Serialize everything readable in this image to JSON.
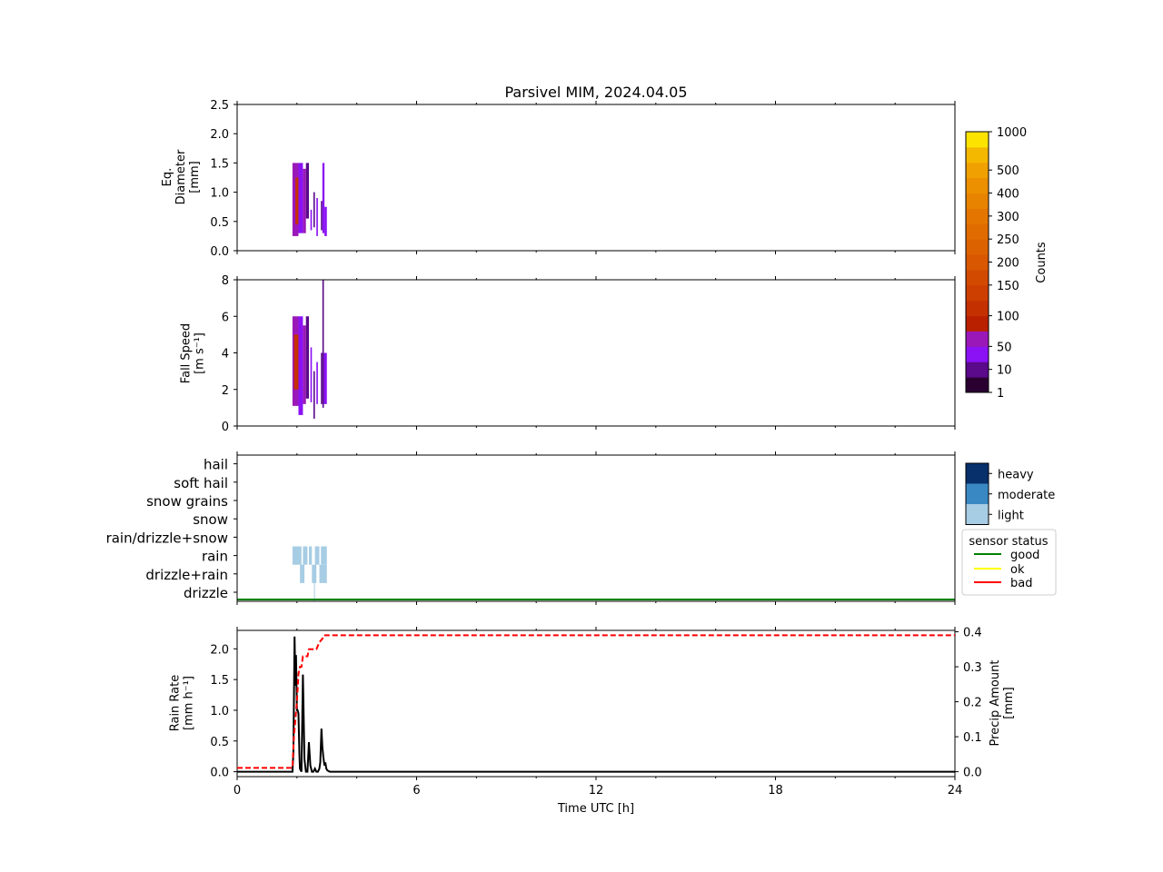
{
  "title": "Parsivel MIM, 2024.04.05",
  "colors": {
    "counts_cmap": [
      "#2a0031",
      "#5a0a8a",
      "#8a12f5",
      "#9a18b8",
      "#b82000",
      "#c43000",
      "#cc3f00",
      "#d24a00",
      "#d85700",
      "#dc6200",
      "#e06c00",
      "#e47600",
      "#e88300",
      "#ec9000",
      "#f0a000",
      "#f5b800",
      "#fce400"
    ],
    "intensity": {
      "light": "#a7cde4",
      "moderate": "#3a88c3",
      "heavy": "#08306b"
    },
    "status": {
      "good": "#008000",
      "ok": "#ffff00",
      "bad": "#ff0000"
    },
    "rain_rate_line": "#000000",
    "precip_amount_line": "#ff0000"
  },
  "chart_data": [
    {
      "id": "diameter",
      "type": "heatmap",
      "ylabel": [
        "Eq.",
        "Diameter",
        "[mm]"
      ],
      "ylim": [
        0,
        2.5
      ],
      "yticks": [
        0.0,
        0.5,
        1.0,
        1.5,
        2.0,
        2.5
      ],
      "ytick_labels": [
        "0.0",
        "0.5",
        "1.0",
        "1.5",
        "2.0",
        "2.5"
      ],
      "xlim": [
        0,
        24
      ],
      "segments": [
        {
          "t": [
            1.85,
            2.05
          ],
          "y": [
            0.25,
            1.5
          ],
          "level": 3
        },
        {
          "t": [
            1.95,
            2.05
          ],
          "y": [
            0.45,
            1.25
          ],
          "level": 5
        },
        {
          "t": [
            2.05,
            2.2
          ],
          "y": [
            0.3,
            1.5
          ],
          "level": 2
        },
        {
          "t": [
            2.2,
            2.3
          ],
          "y": [
            0.3,
            1.4
          ],
          "level": 3
        },
        {
          "t": [
            2.3,
            2.4
          ],
          "y": [
            0.55,
            1.5
          ],
          "level": 1
        },
        {
          "t": [
            2.45,
            2.5
          ],
          "y": [
            0.35,
            0.7
          ],
          "level": 2
        },
        {
          "t": [
            2.55,
            2.6
          ],
          "y": [
            0.4,
            1.0
          ],
          "level": 1
        },
        {
          "t": [
            2.65,
            2.7
          ],
          "y": [
            0.25,
            0.9
          ],
          "level": 2
        },
        {
          "t": [
            2.8,
            2.85
          ],
          "y": [
            0.35,
            0.85
          ],
          "level": 1
        },
        {
          "t": [
            2.85,
            2.92
          ],
          "y": [
            0.3,
            1.5
          ],
          "level": 2
        },
        {
          "t": [
            2.92,
            3.0
          ],
          "y": [
            0.25,
            0.75
          ],
          "level": 2
        }
      ]
    },
    {
      "id": "fallspeed",
      "type": "heatmap",
      "ylabel": [
        "Fall Speed",
        "[m s⁻¹]"
      ],
      "ylim": [
        0,
        8
      ],
      "yticks": [
        0,
        2,
        4,
        6,
        8
      ],
      "ytick_labels": [
        "0",
        "2",
        "4",
        "6",
        "8"
      ],
      "xlim": [
        0,
        24
      ],
      "segments": [
        {
          "t": [
            1.85,
            2.05
          ],
          "y": [
            1.1,
            6.0
          ],
          "level": 3
        },
        {
          "t": [
            1.9,
            2.05
          ],
          "y": [
            2.0,
            5.0
          ],
          "level": 5
        },
        {
          "t": [
            2.05,
            2.2
          ],
          "y": [
            0.6,
            6.0
          ],
          "level": 2
        },
        {
          "t": [
            2.2,
            2.3
          ],
          "y": [
            1.2,
            5.5
          ],
          "level": 3
        },
        {
          "t": [
            2.3,
            2.4
          ],
          "y": [
            1.5,
            6.0
          ],
          "level": 1
        },
        {
          "t": [
            2.45,
            2.5
          ],
          "y": [
            1.3,
            4.3
          ],
          "level": 2
        },
        {
          "t": [
            2.55,
            2.6
          ],
          "y": [
            0.4,
            3.0
          ],
          "level": 1
        },
        {
          "t": [
            2.65,
            2.7
          ],
          "y": [
            1.2,
            3.5
          ],
          "level": 2
        },
        {
          "t": [
            2.8,
            2.85
          ],
          "y": [
            1.2,
            4.0
          ],
          "level": 1
        },
        {
          "t": [
            2.85,
            2.9
          ],
          "y": [
            1.0,
            8.0
          ],
          "level": 1
        },
        {
          "t": [
            2.9,
            3.0
          ],
          "y": [
            1.2,
            4.0
          ],
          "level": 2
        }
      ]
    },
    {
      "id": "weather",
      "type": "heatmap",
      "categories": [
        "drizzle",
        "drizzle+rain",
        "rain",
        "rain/drizzle+snow",
        "snow",
        "snow grains",
        "soft hail",
        "hail"
      ],
      "xlim": [
        0,
        24
      ],
      "cells": [
        {
          "t": [
            1.85,
            2.15
          ],
          "cat": "rain",
          "intensity": "light"
        },
        {
          "t": [
            2.2,
            2.35
          ],
          "cat": "rain",
          "intensity": "light"
        },
        {
          "t": [
            2.4,
            2.5
          ],
          "cat": "rain",
          "intensity": "light"
        },
        {
          "t": [
            2.6,
            2.75
          ],
          "cat": "rain",
          "intensity": "light"
        },
        {
          "t": [
            2.8,
            3.0
          ],
          "cat": "rain",
          "intensity": "light"
        },
        {
          "t": [
            2.1,
            2.25
          ],
          "cat": "drizzle+rain",
          "intensity": "light"
        },
        {
          "t": [
            2.5,
            2.65
          ],
          "cat": "drizzle+rain",
          "intensity": "light"
        },
        {
          "t": [
            2.75,
            3.0
          ],
          "cat": "drizzle+rain",
          "intensity": "light"
        },
        {
          "t": [
            2.57,
            2.6
          ],
          "cat": "drizzle",
          "intensity": "light"
        }
      ],
      "sensor_status": [
        {
          "t": [
            0,
            24
          ],
          "status": "good"
        }
      ]
    },
    {
      "id": "rain",
      "type": "line",
      "xlabel": "Time UTC [h]",
      "xlim": [
        0,
        24
      ],
      "xticks": [
        0,
        6,
        12,
        18,
        24
      ],
      "ylabel": [
        "Rain Rate",
        "[mm h⁻¹]"
      ],
      "ylim": [
        -0.08,
        2.3
      ],
      "yticks": [
        0.0,
        0.5,
        1.0,
        1.5,
        2.0
      ],
      "ytick_labels": [
        "0.0",
        "0.5",
        "1.0",
        "1.5",
        "2.0"
      ],
      "y2label": [
        "Precip Amount",
        "[mm]"
      ],
      "y2lim": [
        -0.014,
        0.404
      ],
      "y2ticks": [
        0.0,
        0.1,
        0.2,
        0.3,
        0.4
      ],
      "y2tick_labels": [
        "0.0",
        "0.1",
        "0.2",
        "0.3",
        "0.4"
      ],
      "series": [
        {
          "id": "rain_rate",
          "axis": "left",
          "style": "solid",
          "x": [
            0,
            1.85,
            1.88,
            1.92,
            1.95,
            1.97,
            2.0,
            2.02,
            2.05,
            2.08,
            2.1,
            2.15,
            2.2,
            2.25,
            2.3,
            2.35,
            2.4,
            2.45,
            2.5,
            2.55,
            2.6,
            2.65,
            2.7,
            2.75,
            2.78,
            2.82,
            2.85,
            2.88,
            2.92,
            2.95,
            2.98,
            3.02,
            3.1,
            24
          ],
          "y": [
            0,
            0,
            0.3,
            2.2,
            1.4,
            1.9,
            1.0,
            1.0,
            0.95,
            0.3,
            0.05,
            0,
            1.58,
            0.2,
            0,
            0,
            0.48,
            0.1,
            0,
            0,
            0.05,
            0,
            0,
            0.05,
            0.15,
            0.7,
            0.4,
            0.25,
            0.1,
            0.15,
            0.05,
            0.02,
            0,
            0
          ]
        },
        {
          "id": "precip_amount",
          "axis": "right",
          "style": "dashed",
          "x": [
            0,
            1.85,
            1.9,
            2.0,
            2.05,
            2.1,
            2.15,
            2.2,
            2.3,
            2.35,
            2.4,
            2.6,
            2.65,
            2.75,
            2.85,
            2.9,
            2.95,
            24
          ],
          "y": [
            0.011,
            0.011,
            0.1,
            0.2,
            0.28,
            0.3,
            0.3,
            0.33,
            0.33,
            0.33,
            0.35,
            0.35,
            0.35,
            0.37,
            0.38,
            0.39,
            0.39,
            0.39
          ]
        }
      ]
    }
  ],
  "colorbar_counts": {
    "label": "Counts",
    "tick_labels": [
      "1",
      "10",
      "50",
      "100",
      "150",
      "200",
      "250",
      "300",
      "400",
      "500",
      "1000"
    ]
  },
  "colorbar_intensity": {
    "tick_labels": [
      "light",
      "moderate",
      "heavy"
    ]
  },
  "legend_status": {
    "title": "sensor status",
    "items": [
      "good",
      "ok",
      "bad"
    ]
  },
  "xtick_labels": [
    "0",
    "6",
    "12",
    "18",
    "24"
  ]
}
